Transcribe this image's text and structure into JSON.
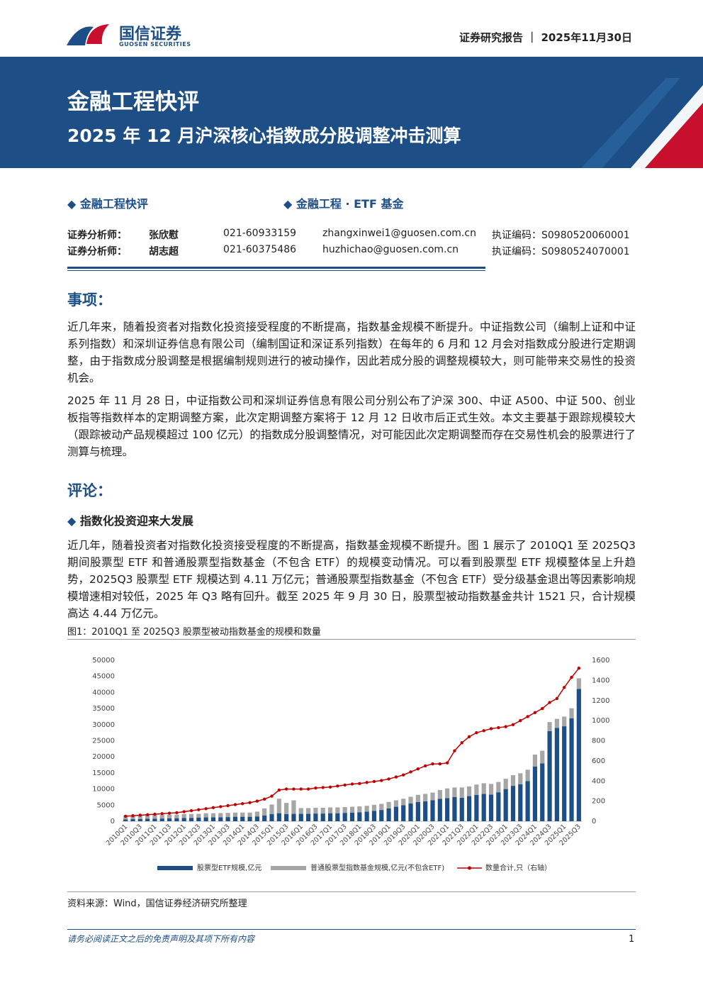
{
  "header": {
    "logo_cn": "国信证券",
    "logo_en": "GUOSEN SECURITIES",
    "report_type": "证券研究报告",
    "separator": "｜",
    "date": "2025年11月30日"
  },
  "banner": {
    "title": "金融工程快评",
    "subtitle": "2025 年 12 月沪深核心指数成分股调整冲击测算"
  },
  "tags": [
    "金融工程快评",
    "金融工程 · ETF 基金"
  ],
  "analysts": [
    {
      "label": "证券分析师：",
      "name": "张欣慰",
      "phone": "021-60933159",
      "email": "zhangxinwei1@guosen.com.cn",
      "cert": "执证编码：S0980520060001"
    },
    {
      "label": "证券分析师：",
      "name": "胡志超",
      "phone": "021-60375486",
      "email": "huzhichao@guosen.com.cn",
      "cert": "执证编码：S0980524070001"
    }
  ],
  "sections": [
    {
      "heading": "事项：",
      "paragraphs": [
        "近几年来，随着投资者对指数化投资接受程度的不断提高，指数基金规模不断提升。中证指数公司（编制上证和中证系列指数）和深圳证券信息有限公司（编制国证和深证系列指数）在每年的 6 月和 12 月会对指数成分股进行定期调整，由于指数成分股调整是根据编制规则进行的被动操作，因此若成分股的调整规模较大，则可能带来交易性的投资机会。",
        "2025 年 11 月 28 日，中证指数公司和深圳证券信息有限公司分别公布了沪深 300、中证 A500、中证 500、创业板指等指数样本的定期调整方案，此次定期调整方案将于 12 月 12 日收市后正式生效。本文主要基于跟踪规模较大（跟踪被动产品规模超过 100 亿元）的指数成分股调整情况，对可能因此次定期调整而存在交易性机会的股票进行了测算与梳理。"
      ]
    },
    {
      "heading": "评论：",
      "subheading": "指数化投资迎来大发展",
      "paragraphs": [
        "近几年，随着投资者对指数化投资接受程度的不断提高，指数基金规模不断提升。图 1 展示了 2010Q1 至 2025Q3 期间股票型 ETF 和普通股票型指数基金（不包含 ETF）的规模变动情况。可以看到股票型 ETF 规模整体呈上升趋势，2025Q3 股票型 ETF 规模达到 4.11 万亿元；普通股票型指数基金（不包含 ETF）受分级基金退出等因素影响规模增速相对较低，2025 年 Q3 略有回升。截至 2025 年 9 月 30 日，股票型被动指数基金共计 1521 只，合计规模高达 4.44 万亿元。"
      ]
    }
  ],
  "chart_data": {
    "type": "bar",
    "title": "图1：2010Q1 至 2025Q3 股票型被动指数基金的规模和数量",
    "source": "资料来源：Wind，国信证券经济研究所整理",
    "stacked": true,
    "categories": [
      "2010Q1",
      null,
      "2010Q3",
      null,
      "2011Q1",
      null,
      "2011Q3",
      null,
      "2012Q1",
      null,
      "2012Q3",
      null,
      "2013Q1",
      null,
      "2013Q3",
      null,
      "2014Q1",
      null,
      "2014Q3",
      null,
      "2015Q1",
      null,
      "2015Q3",
      null,
      "2016Q1",
      null,
      "2016Q3",
      null,
      "2017Q1",
      null,
      "2017Q3",
      null,
      "2018Q1",
      null,
      "2018Q3",
      null,
      "2019Q1",
      null,
      "2019Q3",
      null,
      "2020Q1",
      null,
      "2020Q3",
      null,
      "2021Q1",
      null,
      "2021Q3",
      null,
      "2022Q1",
      null,
      "2022Q3",
      null,
      "2023Q1",
      null,
      "2023Q3",
      null,
      "2024Q1",
      null,
      "2024Q3",
      null,
      "2025Q1",
      null,
      "2025Q3"
    ],
    "series": [
      {
        "name": "股票型ETF规模,亿元",
        "type": "bar",
        "color": "#1d4f86",
        "values": [
          600,
          650,
          700,
          800,
          800,
          850,
          900,
          950,
          1000,
          1050,
          1100,
          1200,
          1200,
          1250,
          1300,
          1400,
          1400,
          1400,
          1500,
          1800,
          2200,
          2500,
          2200,
          2300,
          2300,
          2300,
          2400,
          2400,
          2500,
          2500,
          2600,
          2700,
          2800,
          3000,
          3200,
          3500,
          4000,
          4500,
          5000,
          5500,
          6000,
          6200,
          6500,
          7000,
          7200,
          7500,
          7300,
          7800,
          8200,
          8500,
          8300,
          9000,
          10000,
          11000,
          11500,
          12500,
          17000,
          18000,
          28000,
          29000,
          29500,
          32000,
          41100
        ]
      },
      {
        "name": "普通股票型指数基金规模,亿元(不包含ETF)",
        "type": "bar",
        "color": "#a6a6a6",
        "values": [
          1200,
          1200,
          1100,
          1200,
          1200,
          1100,
          1100,
          1100,
          1200,
          1200,
          1200,
          1300,
          1300,
          1300,
          1300,
          1300,
          1300,
          1300,
          1500,
          2200,
          3000,
          4500,
          3500,
          4200,
          1800,
          1800,
          1800,
          1800,
          1800,
          1800,
          1800,
          1800,
          1800,
          1800,
          1900,
          1900,
          2000,
          2000,
          2000,
          2100,
          2200,
          2300,
          2400,
          2700,
          3000,
          3000,
          3200,
          3000,
          3200,
          3300,
          3300,
          3200,
          3200,
          3300,
          3400,
          3500,
          3700,
          3900,
          2800,
          2800,
          3000,
          3100,
          3300
        ]
      },
      {
        "name": "数量合计,只（右轴）",
        "type": "line",
        "axis": "y2",
        "color": "#c00000",
        "values": [
          50,
          55,
          60,
          65,
          70,
          75,
          80,
          85,
          95,
          105,
          115,
          125,
          135,
          145,
          155,
          165,
          175,
          185,
          200,
          220,
          250,
          310,
          320,
          320,
          320,
          320,
          330,
          335,
          340,
          350,
          360,
          370,
          375,
          385,
          395,
          405,
          420,
          440,
          460,
          490,
          520,
          550,
          570,
          570,
          580,
          700,
          780,
          840,
          880,
          900,
          920,
          930,
          940,
          960,
          1000,
          1040,
          1080,
          1120,
          1180,
          1220,
          1330,
          1430,
          1521
        ]
      }
    ],
    "ylim": [
      0,
      50000
    ],
    "yticks": [
      0,
      5000,
      10000,
      15000,
      20000,
      25000,
      30000,
      35000,
      40000,
      45000,
      50000
    ],
    "y2lim": [
      0,
      1600
    ],
    "y2ticks": [
      0,
      200,
      400,
      600,
      800,
      1000,
      1200,
      1400,
      1600
    ],
    "grid": false,
    "legend": "bottom"
  },
  "footer": {
    "disclaimer": "请务必阅读正文之后的免责声明及其项下所有内容",
    "page": "1"
  }
}
